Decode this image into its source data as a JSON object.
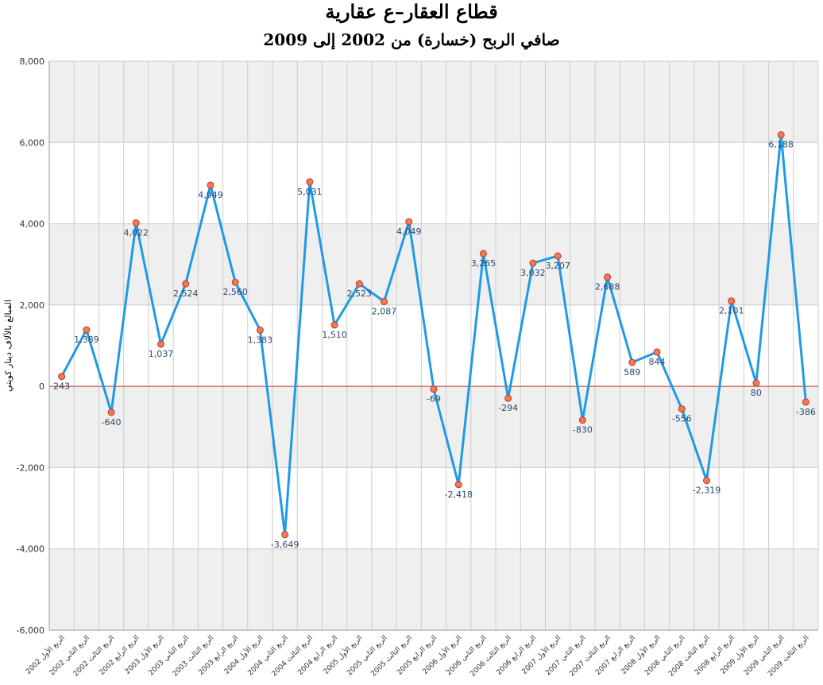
{
  "chart_data": {
    "type": "line",
    "title": "قطاع العقار–ع عقارية",
    "subtitle": "صافي الربح (خسارة) من 2002 إلى 2009",
    "ylabel": "المبالغ بالآلاف دينار كويتي",
    "xlabel": "",
    "ylim": [
      -6000,
      8000
    ],
    "yticks": [
      -6000,
      -4000,
      -2000,
      0,
      2000,
      4000,
      6000,
      8000
    ],
    "ytick_labels": [
      "-6,000",
      "-4,000",
      "-2,000",
      "0",
      "2,000",
      "4,000",
      "6,000",
      "8,000"
    ],
    "grid": true,
    "legend": "none",
    "categories": [
      "الربع الأول 2002",
      "الربع الثاني 2002",
      "الربع الثالث 2002",
      "الربع الرابع 2002",
      "الربع الأول 2003",
      "الربع الثاني 2003",
      "الربع الثالث 2003",
      "الربع الرابع 2003",
      "الربع الأول 2004",
      "الربع الثاني 2004",
      "الربع الثالث 2004",
      "الربع الرابع 2004",
      "الربع الأول 2005",
      "الربع الثاني 2005",
      "الربع الثالث 2005",
      "الربع الرابع 2005",
      "الربع الأول 2006",
      "الربع الثاني 2006",
      "الربع الثالث 2006",
      "الربع الرابع 2006",
      "الربع الأول 2007",
      "الربع الثاني 2007",
      "الربع الثالث 2007",
      "الربع الرابع 2007",
      "الربع الأول 2008",
      "الربع الثاني 2008",
      "الربع الثالث 2008",
      "الربع الرابع 2008",
      "الربع الأول 2009",
      "الربع الثاني 2009",
      "الربع الثالث 2009"
    ],
    "series": [
      {
        "values": [
          243,
          1389,
          -640,
          4022,
          1037,
          2524,
          4949,
          2560,
          1383,
          -3649,
          5031,
          1510,
          2523,
          2087,
          4049,
          -69,
          -2418,
          3265,
          -294,
          3032,
          3207,
          -830,
          2688,
          589,
          844,
          -556,
          -2319,
          2101,
          80,
          6188,
          -386
        ],
        "labels": [
          "243",
          "1,389",
          "-640",
          "4,022",
          "1,037",
          "2,524",
          "4,949",
          "2,560",
          "1,383",
          "-3,649",
          "5,031",
          "1,510",
          "2,523",
          "2,087",
          "4,049",
          "-69",
          "-2,418",
          "3,265",
          "-294",
          "3,032",
          "3,207",
          "-830",
          "2,688",
          "589",
          "844",
          "-556",
          "-2,319",
          "2,101",
          "80",
          "6,188",
          "-386"
        ]
      }
    ],
    "colors": {
      "line": "#1f9ae6",
      "marker_fill": "#f07a52",
      "marker_stroke": "#c0392b",
      "zero_line": "#c0392b",
      "band": "#efefef",
      "grid": "#cccccc"
    }
  }
}
